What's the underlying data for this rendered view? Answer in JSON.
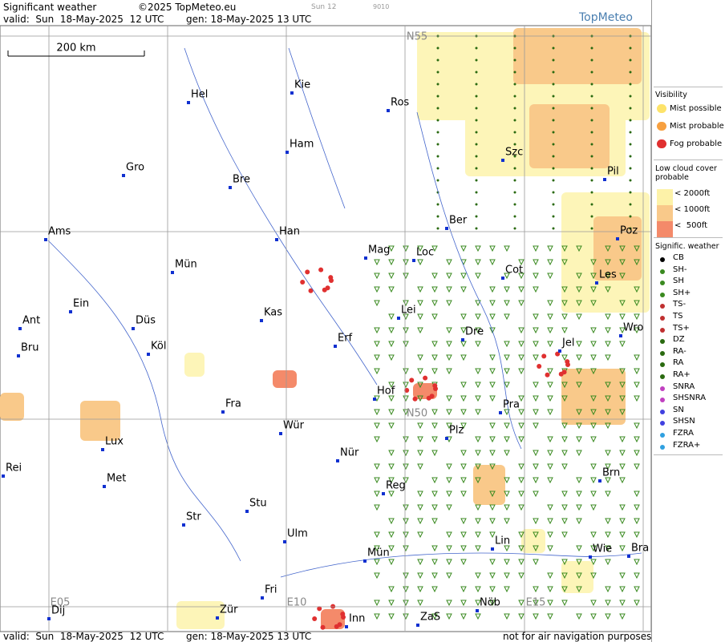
{
  "header": {
    "title": "Significant weather",
    "copyright": "©2025 TopMeteo.eu",
    "slot": "Sun 12",
    "code": "9010",
    "valid": "valid:  Sun  18-May-2025  12 UTC",
    "generated": "gen: 18-May-2025 13 UTC",
    "logo": "TopMeteo"
  },
  "footer": {
    "valid": "valid:  Sun  18-May-2025  12 UTC",
    "generated": "gen: 18-May-2025 13 UTC",
    "disclaimer": "not for air navigation purposes"
  },
  "map": {
    "scale": "200 km",
    "grid_labels": [
      "N55",
      "N50",
      "E05",
      "E10",
      "E15"
    ],
    "cities": [
      "Hel",
      "Kie",
      "Ros",
      "Gro",
      "Ham",
      "Bre",
      "Szc",
      "Pil",
      "Ams",
      "Han",
      "Ber",
      "Mag",
      "Loc",
      "Poz",
      "Mün",
      "Cot",
      "Les",
      "Ein",
      "Kas",
      "Lei",
      "Ant",
      "Düs",
      "Erf",
      "Dre",
      "Wro",
      "Jel",
      "Bru",
      "Köl",
      "Hof",
      "Fra",
      "Pra",
      "Lux",
      "Wür",
      "Plz",
      "Nür",
      "Rei",
      "Met",
      "Brn",
      "Reg",
      "Stu",
      "Str",
      "Lin",
      "Ulm",
      "Wie",
      "Bra",
      "Mün",
      "Fri",
      "Nöb",
      "Dij",
      "Zür",
      "Inn",
      "ZaS"
    ]
  },
  "legend": {
    "visibility": {
      "title": "Visibility",
      "items": [
        "Mist possible",
        "Mist probable",
        "Fog probable"
      ]
    },
    "low_cloud": {
      "title": "Low cloud cover probable",
      "items": [
        "< 2000ft",
        "< 1000ft",
        "<  500ft"
      ]
    },
    "weather": {
      "title": "Signific. weather",
      "items": [
        "CB",
        "SH-",
        "SH",
        "SH+",
        "TS-",
        "TS",
        "TS+",
        "DZ",
        "RA-",
        "RA",
        "RA+",
        "SNRA",
        "SHSNRA",
        "SN",
        "SHSN",
        "FZRA",
        "FZRA+"
      ]
    }
  }
}
